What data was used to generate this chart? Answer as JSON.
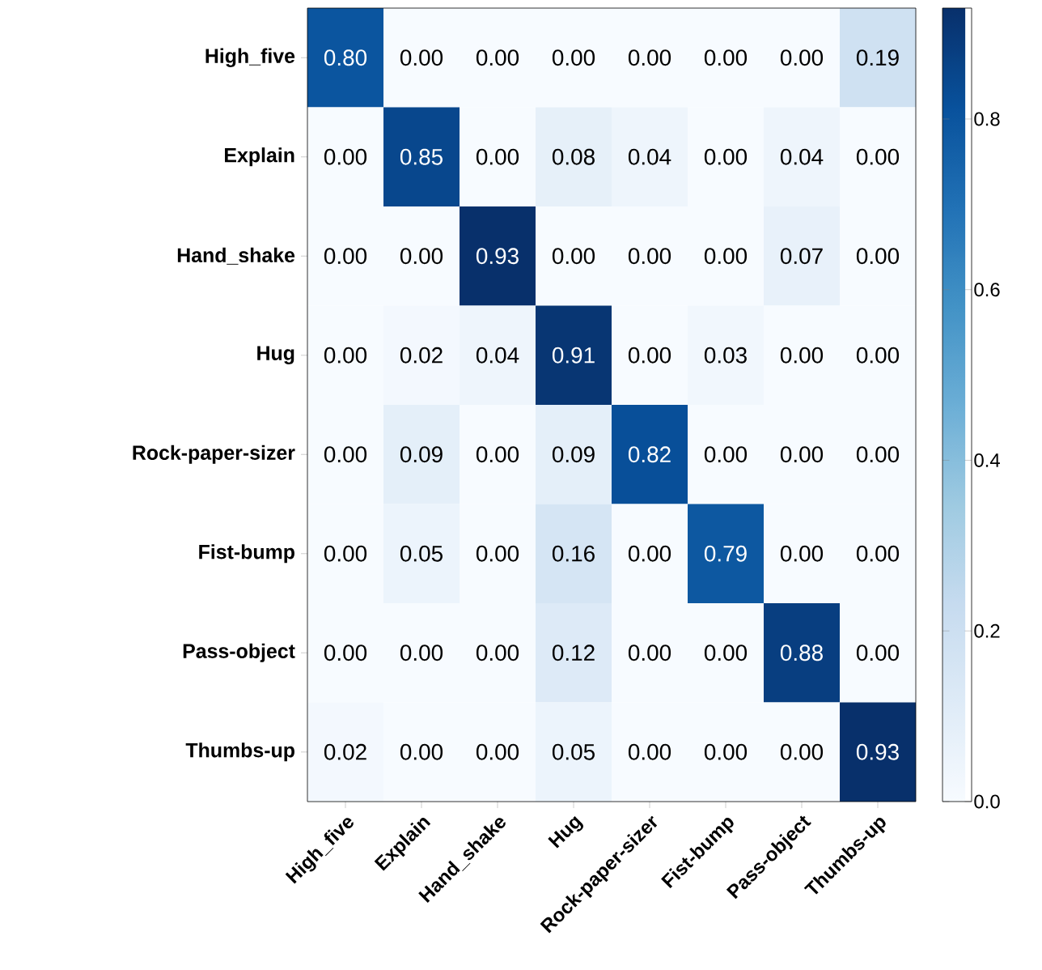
{
  "chart_data": {
    "type": "heatmap",
    "categories": [
      "High_five",
      "Explain",
      "Hand_shake",
      "Hug",
      "Rock-paper-sizer",
      "Fist-bump",
      "Pass-object",
      "Thumbs-up"
    ],
    "y_categories": [
      "High_five",
      "Explain",
      "Hand_shake",
      "Hug",
      "Rock-paper-sizer",
      "Fist-bump",
      "Pass-object",
      "Thumbs-up"
    ],
    "cells": [
      [
        0.8,
        0,
        0,
        0,
        0,
        0,
        0,
        0.19
      ],
      [
        0,
        0.85,
        0,
        0.08,
        0.04,
        0,
        0.04,
        0
      ],
      [
        0,
        0,
        0.93,
        0,
        0,
        0,
        0.07,
        0
      ],
      [
        0,
        0.02,
        0.04,
        0.91,
        0,
        0.03,
        0,
        0
      ],
      [
        0,
        0.09,
        0,
        0.09,
        0.82,
        0,
        0,
        0
      ],
      [
        0,
        0.05,
        0,
        0.16,
        0,
        0.79,
        0,
        0
      ],
      [
        0,
        0,
        0,
        0.12,
        0,
        0,
        0.88,
        0
      ],
      [
        0.02,
        0,
        0,
        0.05,
        0,
        0,
        0,
        0.93
      ]
    ],
    "cell_labels": [
      [
        "0.80",
        "0.00",
        "0.00",
        "0.00",
        "0.00",
        "0.00",
        "0.00",
        "0.19"
      ],
      [
        "0.00",
        "0.85",
        "0.00",
        "0.08",
        "0.04",
        "0.00",
        "0.04",
        "0.00"
      ],
      [
        "0.00",
        "0.00",
        "0.93",
        "0.00",
        "0.00",
        "0.00",
        "0.07",
        "0.00"
      ],
      [
        "0.00",
        "0.02",
        "0.04",
        "0.91",
        "0.00",
        "0.03",
        "0.00",
        "0.00"
      ],
      [
        "0.00",
        "0.09",
        "0.00",
        "0.09",
        "0.82",
        "0.00",
        "0.00",
        "0.00"
      ],
      [
        "0.00",
        "0.05",
        "0.00",
        "0.16",
        "0.00",
        "0.79",
        "0.00",
        "0.00"
      ],
      [
        "0.00",
        "0.00",
        "0.00",
        "0.12",
        "0.00",
        "0.00",
        "0.88",
        "0.00"
      ],
      [
        "0.02",
        "0.00",
        "0.00",
        "0.05",
        "0.00",
        "0.00",
        "0.00",
        "0.93"
      ]
    ],
    "clim": [
      0,
      0.93
    ],
    "cticks": [
      {
        "value": 0,
        "label": "0.0"
      },
      0.2,
      0.4,
      0.6,
      0.8
    ]
  }
}
